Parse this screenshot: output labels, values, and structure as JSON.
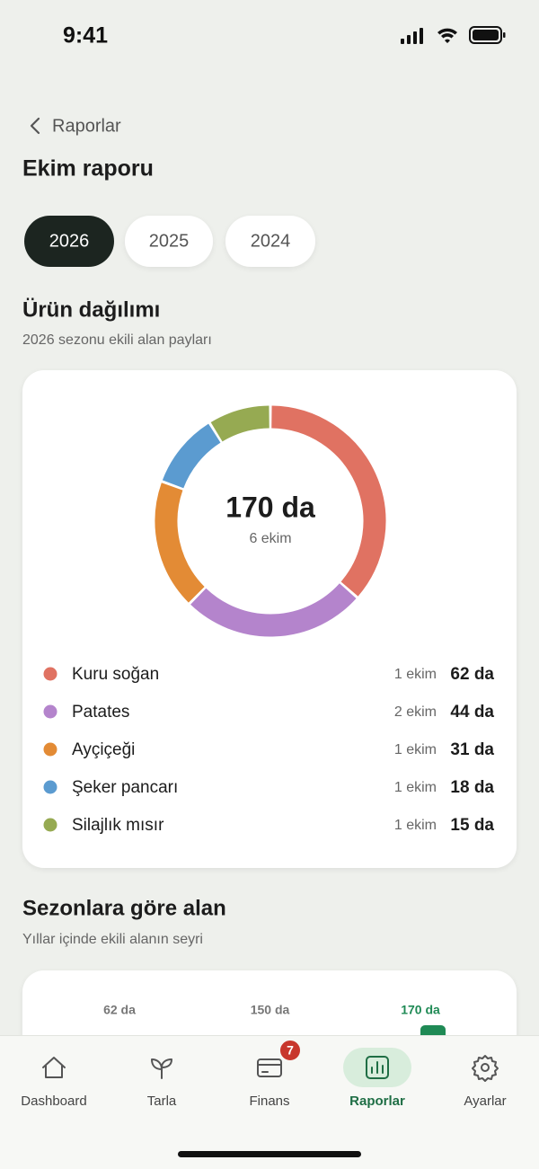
{
  "status_bar": {
    "time": "9:41"
  },
  "header": {
    "back_label": "Raporlar",
    "title": "Ekim raporu"
  },
  "year_tabs": [
    {
      "label": "2026",
      "selected": true
    },
    {
      "label": "2025",
      "selected": false
    },
    {
      "label": "2024",
      "selected": false
    }
  ],
  "chart_data": [
    {
      "type": "donut",
      "title": "Ürün dağılımı",
      "subtitle": "2026 sezonu ekili alan payları",
      "center_label": "170 da",
      "center_sublabel": "6 ekim",
      "categories": [
        "Kuru soğan",
        "Patates",
        "Ayçiçeği",
        "Şeker pancarı",
        "Silajlık mısır"
      ],
      "values": [
        62,
        44,
        31,
        18,
        15
      ],
      "value_labels": [
        "62 da",
        "44 da",
        "31 da",
        "18 da",
        "15 da"
      ],
      "count_labels": [
        "1 ekim",
        "2 ekim",
        "1 ekim",
        "1 ekim",
        "1 ekim"
      ],
      "colors": [
        "#e07262",
        "#b484cc",
        "#e38b35",
        "#5b9bd0",
        "#96aa52"
      ]
    },
    {
      "type": "bar",
      "title": "Sezonlara göre alan",
      "subtitle": "Yıllar içinde ekili alanın seyri",
      "categories": [
        null,
        null,
        null
      ],
      "values": [
        62,
        150,
        170
      ],
      "value_labels": [
        "62 da",
        "150 da",
        "170 da"
      ],
      "colors": [
        "#cfe3d3",
        "#cfe3d3",
        "#1f8a55"
      ],
      "highlight": 2
    }
  ],
  "nav": {
    "items": [
      {
        "label": "Dashboard"
      },
      {
        "label": "Tarla"
      },
      {
        "label": "Finans",
        "badge": 7
      },
      {
        "label": "Raporlar",
        "active": true
      },
      {
        "label": "Ayarlar"
      }
    ]
  }
}
